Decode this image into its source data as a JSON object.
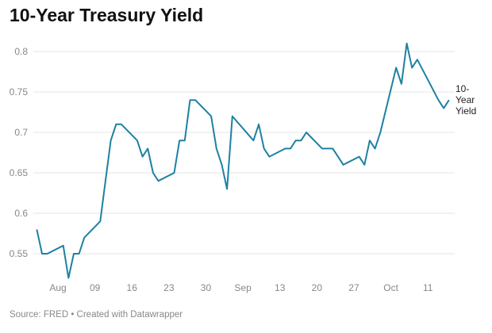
{
  "chart_data": {
    "type": "line",
    "title": "10-Year Treasury Yield",
    "source": "Source: FRED • Created with Datawrapper",
    "ylim": [
      0.52,
      0.81
    ],
    "yticks": [
      0.55,
      0.6,
      0.65,
      0.7,
      0.75,
      0.8
    ],
    "ytick_labels": [
      "0.55",
      "0.6",
      "0.65",
      "0.7",
      "0.75",
      "0.8"
    ],
    "xticks": [
      "2020-08-02",
      "2020-08-09",
      "2020-08-16",
      "2020-08-23",
      "2020-08-30",
      "2020-09-06",
      "2020-09-13",
      "2020-09-20",
      "2020-09-27",
      "2020-10-04",
      "2020-10-11"
    ],
    "xtick_labels": [
      "Aug",
      "09",
      "16",
      "23",
      "30",
      "Sep",
      "13",
      "20",
      "27",
      "Oct",
      "11"
    ],
    "grid": true,
    "color": "#1d81a2",
    "series": [
      {
        "name": "10-Year Yield",
        "label_lines": [
          "10-",
          "Year",
          "Yield"
        ],
        "x": [
          "2020-07-29",
          "2020-07-30",
          "2020-07-31",
          "2020-08-03",
          "2020-08-04",
          "2020-08-05",
          "2020-08-06",
          "2020-08-07",
          "2020-08-10",
          "2020-08-11",
          "2020-08-12",
          "2020-08-13",
          "2020-08-14",
          "2020-08-17",
          "2020-08-18",
          "2020-08-19",
          "2020-08-20",
          "2020-08-21",
          "2020-08-24",
          "2020-08-25",
          "2020-08-26",
          "2020-08-27",
          "2020-08-28",
          "2020-08-31",
          "2020-09-01",
          "2020-09-02",
          "2020-09-03",
          "2020-09-04",
          "2020-09-08",
          "2020-09-09",
          "2020-09-10",
          "2020-09-11",
          "2020-09-14",
          "2020-09-15",
          "2020-09-16",
          "2020-09-17",
          "2020-09-18",
          "2020-09-21",
          "2020-09-22",
          "2020-09-23",
          "2020-09-24",
          "2020-09-25",
          "2020-09-28",
          "2020-09-29",
          "2020-09-30",
          "2020-10-01",
          "2020-10-02",
          "2020-10-05",
          "2020-10-06",
          "2020-10-07",
          "2020-10-08",
          "2020-10-09",
          "2020-10-13",
          "2020-10-14",
          "2020-10-15"
        ],
        "values": [
          0.58,
          0.55,
          0.55,
          0.56,
          0.52,
          0.55,
          0.55,
          0.57,
          0.59,
          0.64,
          0.69,
          0.71,
          0.71,
          0.69,
          0.67,
          0.68,
          0.65,
          0.64,
          0.65,
          0.69,
          0.69,
          0.74,
          0.74,
          0.72,
          0.68,
          0.66,
          0.63,
          0.72,
          0.69,
          0.71,
          0.68,
          0.67,
          0.68,
          0.68,
          0.69,
          0.69,
          0.7,
          0.68,
          0.68,
          0.68,
          0.67,
          0.66,
          0.67,
          0.66,
          0.69,
          0.68,
          0.7,
          0.78,
          0.76,
          0.81,
          0.78,
          0.79,
          0.74,
          0.73,
          0.74
        ]
      }
    ]
  }
}
